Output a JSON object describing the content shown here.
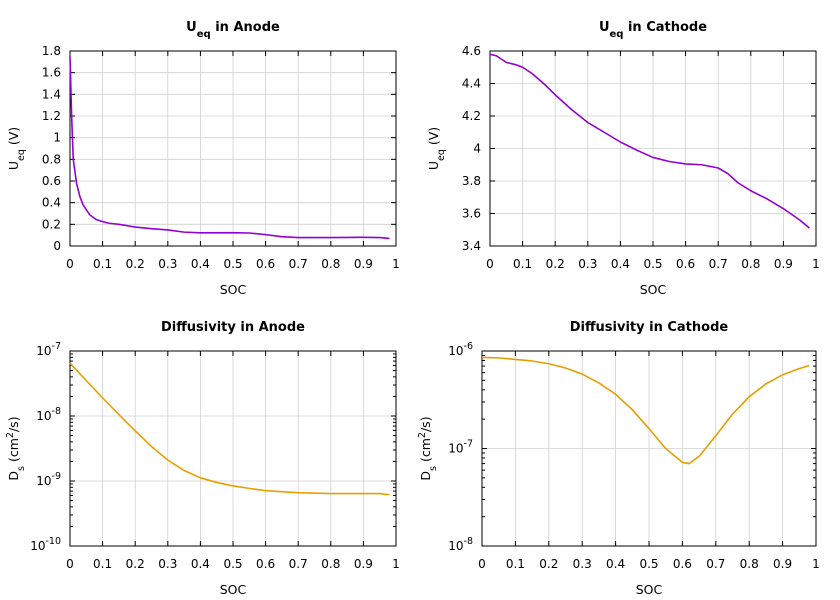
{
  "chart_data": [
    {
      "type": "line",
      "title": {
        "main": "U",
        "sub": "eq",
        "rest": " in Anode"
      },
      "xlabel": "SOC",
      "ylabel": {
        "main": "U",
        "sub": "eq",
        "rest": " (V)"
      },
      "xlim": [
        0,
        1
      ],
      "ylim": [
        0,
        1.8
      ],
      "yscale": "linear",
      "grid": true,
      "xticks": [
        "0",
        "0.1",
        "0.2",
        "0.3",
        "0.4",
        "0.5",
        "0.6",
        "0.7",
        "0.8",
        "0.9",
        "1"
      ],
      "yticks": [
        "0",
        "0.2",
        "0.4",
        "0.6",
        "0.8",
        "1",
        "1.2",
        "1.4",
        "1.6",
        "1.8"
      ],
      "series": [
        {
          "color": "#9400d3",
          "x": [
            0,
            0.005,
            0.01,
            0.02,
            0.03,
            0.04,
            0.06,
            0.08,
            0.1,
            0.12,
            0.15,
            0.2,
            0.25,
            0.3,
            0.35,
            0.4,
            0.5,
            0.55,
            0.6,
            0.65,
            0.7,
            0.8,
            0.9,
            0.95,
            0.98
          ],
          "y": [
            1.75,
            1.2,
            0.8,
            0.58,
            0.46,
            0.38,
            0.29,
            0.245,
            0.225,
            0.21,
            0.2,
            0.175,
            0.16,
            0.148,
            0.128,
            0.122,
            0.123,
            0.12,
            0.105,
            0.086,
            0.078,
            0.078,
            0.08,
            0.078,
            0.07
          ]
        }
      ]
    },
    {
      "type": "line",
      "title": {
        "main": "U",
        "sub": "eq",
        "rest": " in Cathode"
      },
      "xlabel": "SOC",
      "ylabel": {
        "main": "U",
        "sub": "eq",
        "rest": " (V)"
      },
      "xlim": [
        0,
        1
      ],
      "ylim": [
        3.4,
        4.6
      ],
      "yscale": "linear",
      "grid": true,
      "xticks": [
        "0",
        "0.1",
        "0.2",
        "0.3",
        "0.4",
        "0.5",
        "0.6",
        "0.7",
        "0.8",
        "0.9",
        "1"
      ],
      "yticks": [
        "3.4",
        "3.6",
        "3.8",
        "4",
        "4.2",
        "4.4",
        "4.6"
      ],
      "series": [
        {
          "color": "#9400d3",
          "x": [
            0,
            0.02,
            0.05,
            0.08,
            0.1,
            0.13,
            0.17,
            0.2,
            0.25,
            0.3,
            0.35,
            0.4,
            0.45,
            0.5,
            0.55,
            0.6,
            0.65,
            0.7,
            0.73,
            0.76,
            0.8,
            0.85,
            0.9,
            0.95,
            0.98
          ],
          "y": [
            4.58,
            4.57,
            4.53,
            4.515,
            4.5,
            4.46,
            4.39,
            4.33,
            4.24,
            4.16,
            4.1,
            4.04,
            3.99,
            3.945,
            3.92,
            3.905,
            3.9,
            3.88,
            3.845,
            3.79,
            3.74,
            3.69,
            3.63,
            3.56,
            3.51
          ]
        }
      ]
    },
    {
      "type": "line",
      "title": {
        "main": "Diffusivity in Anode"
      },
      "xlabel": "SOC",
      "ylabel": {
        "main": "D",
        "sub": "s",
        "rest": " (cm",
        "sup": "2",
        "rest2": "/s)"
      },
      "xlim": [
        0,
        1
      ],
      "ylim_exp": [
        -10,
        -7
      ],
      "yscale": "log",
      "grid": true,
      "xticks": [
        "0",
        "0.1",
        "0.2",
        "0.3",
        "0.4",
        "0.5",
        "0.6",
        "0.7",
        "0.8",
        "0.9",
        "1"
      ],
      "yticks": [
        {
          "base": "10",
          "exp": "-10"
        },
        {
          "base": "10",
          "exp": "-9"
        },
        {
          "base": "10",
          "exp": "-8"
        },
        {
          "base": "10",
          "exp": "-7"
        }
      ],
      "series": [
        {
          "color": "#e69f00",
          "x": [
            0,
            0.05,
            0.1,
            0.15,
            0.2,
            0.25,
            0.3,
            0.35,
            0.4,
            0.45,
            0.5,
            0.55,
            0.6,
            0.7,
            0.8,
            0.9,
            0.95,
            0.97,
            0.98
          ],
          "y": [
            6.5e-08,
            3.5e-08,
            1.9e-08,
            1.05e-08,
            5.9e-09,
            3.4e-09,
            2.1e-09,
            1.45e-09,
            1.12e-09,
            9.5e-10,
            8.4e-10,
            7.7e-10,
            7.1e-10,
            6.6e-10,
            6.4e-10,
            6.4e-10,
            6.4e-10,
            6.2e-10,
            6.2e-10
          ]
        }
      ]
    },
    {
      "type": "line",
      "title": {
        "main": "Diffusivity in Cathode"
      },
      "xlabel": "SOC",
      "ylabel": {
        "main": "D",
        "sub": "s",
        "rest": " (cm",
        "sup": "2",
        "rest2": "/s)"
      },
      "xlim": [
        0,
        1
      ],
      "ylim_exp": [
        -8,
        -6
      ],
      "yscale": "log",
      "grid": true,
      "xticks": [
        "0",
        "0.1",
        "0.2",
        "0.3",
        "0.4",
        "0.5",
        "0.6",
        "0.7",
        "0.8",
        "0.9",
        "1"
      ],
      "yticks": [
        {
          "base": "10",
          "exp": "-8"
        },
        {
          "base": "10",
          "exp": "-7"
        },
        {
          "base": "10",
          "exp": "-6"
        }
      ],
      "series": [
        {
          "color": "#e69f00",
          "x": [
            0,
            0.05,
            0.1,
            0.15,
            0.2,
            0.25,
            0.3,
            0.35,
            0.4,
            0.45,
            0.5,
            0.55,
            0.6,
            0.62,
            0.65,
            0.7,
            0.75,
            0.8,
            0.85,
            0.9,
            0.95,
            0.98
          ],
          "y": [
            8.6e-07,
            8.5e-07,
            8.2e-07,
            7.9e-07,
            7.4e-07,
            6.7e-07,
            5.8e-07,
            4.7e-07,
            3.6e-07,
            2.5e-07,
            1.6e-07,
            1e-07,
            7.2e-08,
            7e-08,
            8.3e-08,
            1.35e-07,
            2.25e-07,
            3.4e-07,
            4.6e-07,
            5.7e-07,
            6.6e-07,
            7.1e-07
          ]
        }
      ]
    }
  ]
}
